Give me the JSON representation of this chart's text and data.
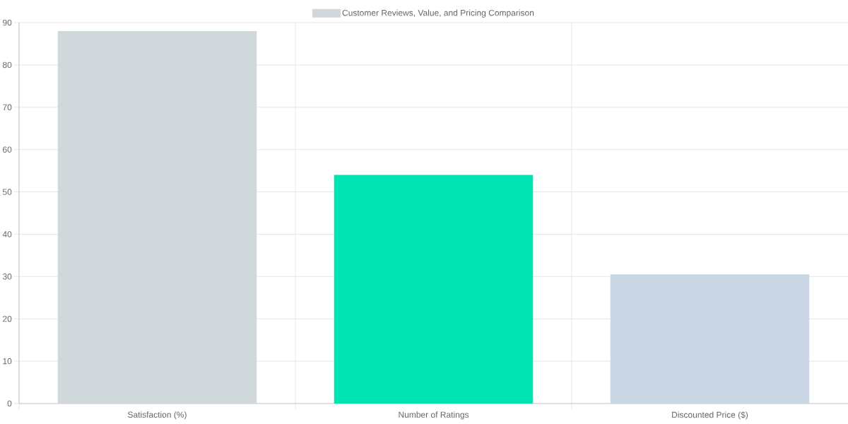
{
  "chart_data": {
    "type": "bar",
    "categories": [
      "Satisfaction (%)",
      "Number of Ratings",
      "Discounted Price ($)"
    ],
    "series": [
      {
        "name": "Customer Reviews, Value, and Pricing Comparison",
        "colors": [
          "#d0d8db",
          "#00e3b3",
          "#cbd7e5"
        ],
        "values": [
          88,
          54,
          30.5
        ]
      }
    ],
    "ylim": [
      0,
      90
    ],
    "yticks": [
      0,
      10,
      20,
      30,
      40,
      50,
      60,
      70,
      80,
      90
    ],
    "grid": true,
    "legend": "top"
  }
}
